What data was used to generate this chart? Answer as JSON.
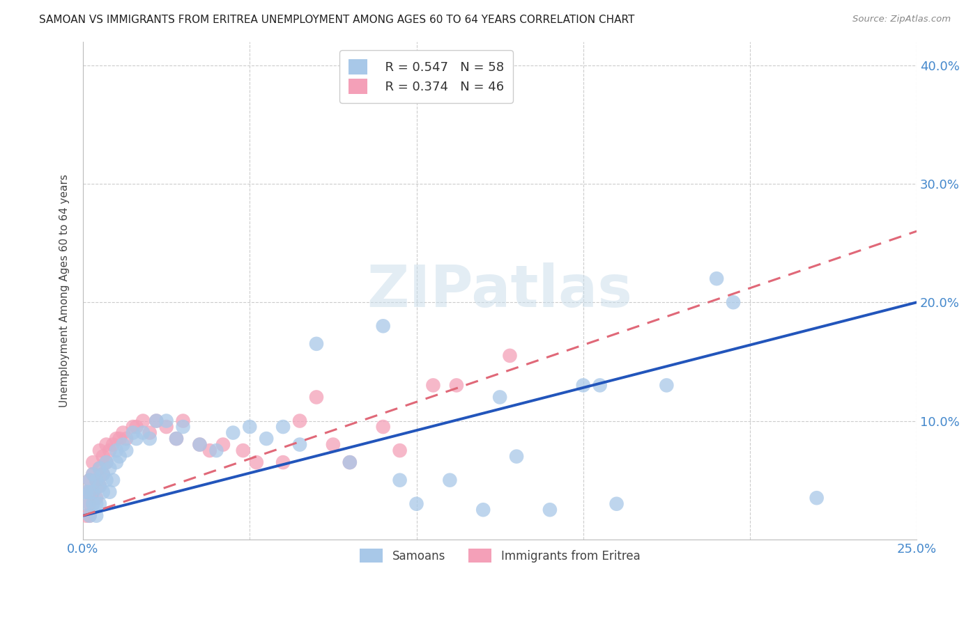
{
  "title": "SAMOAN VS IMMIGRANTS FROM ERITREA UNEMPLOYMENT AMONG AGES 60 TO 64 YEARS CORRELATION CHART",
  "source": "Source: ZipAtlas.com",
  "ylabel": "Unemployment Among Ages 60 to 64 years",
  "xlim": [
    0.0,
    0.25
  ],
  "ylim": [
    0.0,
    0.42
  ],
  "xticks": [
    0.0,
    0.05,
    0.1,
    0.15,
    0.2,
    0.25
  ],
  "yticks": [
    0.0,
    0.1,
    0.2,
    0.3,
    0.4
  ],
  "background_color": "#ffffff",
  "watermark_text": "ZIPatlas",
  "watermark_color": "#c8dcea",
  "samoan_color": "#a8c8e8",
  "eritrea_color": "#f4a0b8",
  "line_blue_color": "#2255bb",
  "line_pink_color": "#e06878",
  "samoans_label": "Samoans",
  "eritrea_label": "Immigrants from Eritrea",
  "legend_r1": "R = 0.547",
  "legend_n1": "N = 58",
  "legend_r2": "R = 0.374",
  "legend_n2": "N = 46",
  "blue_line_x0": 0.0,
  "blue_line_y0": 0.02,
  "blue_line_x1": 0.25,
  "blue_line_y1": 0.2,
  "pink_line_x0": 0.0,
  "pink_line_y0": 0.02,
  "pink_line_x1": 0.25,
  "pink_line_y1": 0.26,
  "samoan_x": [
    0.001,
    0.001,
    0.002,
    0.002,
    0.002,
    0.003,
    0.003,
    0.003,
    0.004,
    0.004,
    0.004,
    0.005,
    0.005,
    0.005,
    0.006,
    0.006,
    0.007,
    0.007,
    0.008,
    0.008,
    0.009,
    0.01,
    0.01,
    0.011,
    0.012,
    0.013,
    0.015,
    0.016,
    0.018,
    0.02,
    0.022,
    0.025,
    0.028,
    0.03,
    0.035,
    0.04,
    0.045,
    0.05,
    0.055,
    0.06,
    0.065,
    0.07,
    0.08,
    0.09,
    0.095,
    0.1,
    0.11,
    0.12,
    0.125,
    0.13,
    0.14,
    0.15,
    0.155,
    0.16,
    0.175,
    0.19,
    0.195,
    0.22
  ],
  "samoan_y": [
    0.03,
    0.04,
    0.02,
    0.04,
    0.05,
    0.03,
    0.04,
    0.055,
    0.02,
    0.03,
    0.05,
    0.03,
    0.045,
    0.06,
    0.04,
    0.055,
    0.05,
    0.065,
    0.04,
    0.06,
    0.05,
    0.065,
    0.075,
    0.07,
    0.08,
    0.075,
    0.09,
    0.085,
    0.09,
    0.085,
    0.1,
    0.1,
    0.085,
    0.095,
    0.08,
    0.075,
    0.09,
    0.095,
    0.085,
    0.095,
    0.08,
    0.165,
    0.065,
    0.18,
    0.05,
    0.03,
    0.05,
    0.025,
    0.12,
    0.07,
    0.025,
    0.13,
    0.13,
    0.03,
    0.13,
    0.22,
    0.2,
    0.035
  ],
  "eritrea_x": [
    0.001,
    0.001,
    0.002,
    0.002,
    0.002,
    0.003,
    0.003,
    0.003,
    0.004,
    0.004,
    0.005,
    0.005,
    0.005,
    0.006,
    0.006,
    0.007,
    0.007,
    0.008,
    0.009,
    0.01,
    0.011,
    0.012,
    0.013,
    0.015,
    0.016,
    0.018,
    0.02,
    0.022,
    0.025,
    0.028,
    0.03,
    0.035,
    0.038,
    0.042,
    0.048,
    0.052,
    0.06,
    0.065,
    0.07,
    0.075,
    0.08,
    0.09,
    0.095,
    0.105,
    0.112,
    0.128
  ],
  "eritrea_y": [
    0.02,
    0.04,
    0.03,
    0.05,
    0.02,
    0.04,
    0.055,
    0.065,
    0.035,
    0.05,
    0.045,
    0.06,
    0.075,
    0.055,
    0.07,
    0.065,
    0.08,
    0.075,
    0.08,
    0.085,
    0.085,
    0.09,
    0.085,
    0.095,
    0.095,
    0.1,
    0.09,
    0.1,
    0.095,
    0.085,
    0.1,
    0.08,
    0.075,
    0.08,
    0.075,
    0.065,
    0.065,
    0.1,
    0.12,
    0.08,
    0.065,
    0.095,
    0.075,
    0.13,
    0.13,
    0.155
  ]
}
